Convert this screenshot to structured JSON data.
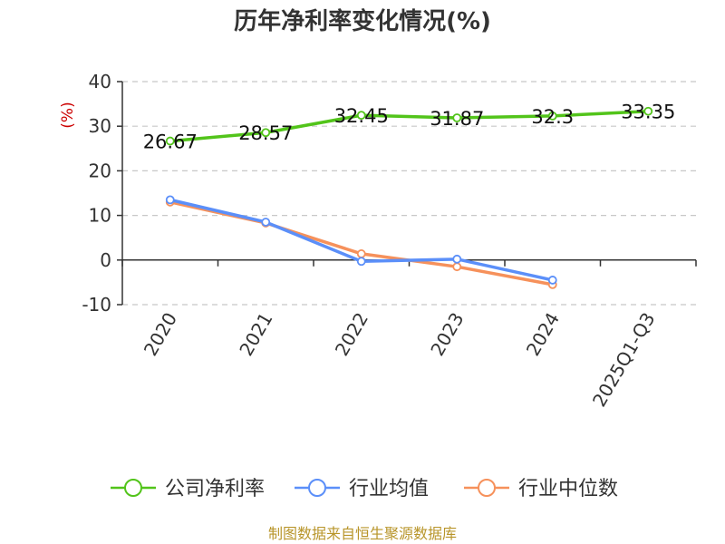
{
  "chart_data": {
    "type": "line",
    "title": "历年净利率变化情况(%)",
    "ylabel": "(%)",
    "xlabel": "",
    "categories": [
      "2020",
      "2021",
      "2022",
      "2023",
      "2024",
      "2025Q1-Q3"
    ],
    "ylim": [
      -10,
      40
    ],
    "yticks": [
      40,
      30,
      20,
      10,
      0,
      -10
    ],
    "grid": true,
    "legend_position": "bottom",
    "series": [
      {
        "name": "公司净利率",
        "color": "#52c41a",
        "values": [
          26.67,
          28.57,
          32.45,
          31.87,
          32.3,
          33.35
        ],
        "labels": [
          "26.67",
          "28.57",
          "32.45",
          "31.87",
          "32.3",
          "33.35"
        ]
      },
      {
        "name": "行业均值",
        "color": "#5b8ff9",
        "values": [
          13.5,
          8.5,
          -0.3,
          0.2,
          -4.5,
          null
        ]
      },
      {
        "name": "行业中位数",
        "color": "#f6915b",
        "values": [
          13.0,
          8.3,
          1.4,
          -1.5,
          -5.5,
          null
        ]
      }
    ]
  },
  "source": "制图数据来自恒生聚源数据库"
}
